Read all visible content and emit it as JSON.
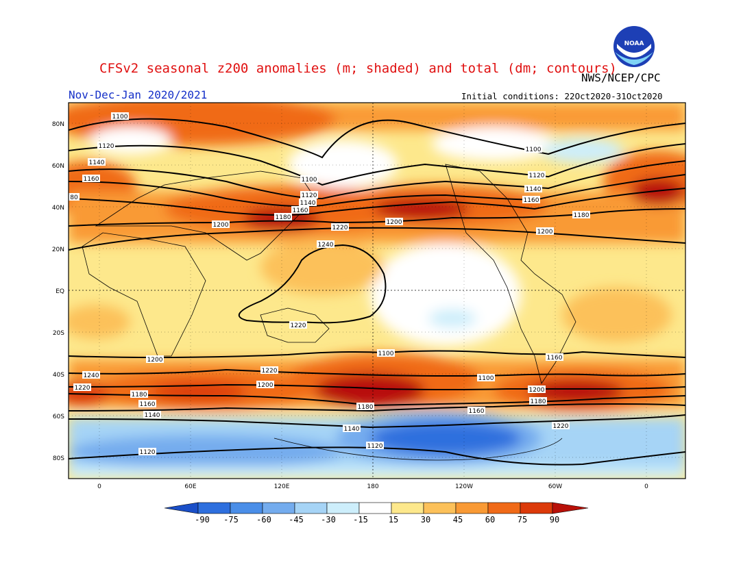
{
  "header": {
    "title": "CFSv2 seasonal z200 anomalies (m; shaded) and total (dm; contours)",
    "agency": "NWS/NCEP/CPC",
    "period": "Nov-Dec-Jan 2020/2021",
    "initial_conditions": "Initial conditions: 22Oct2020-31Oct2020",
    "logo_text": "NOAA"
  },
  "map": {
    "lat_labels": [
      "80N",
      "60N",
      "40N",
      "20N",
      "EQ",
      "20S",
      "40S",
      "60S",
      "80S"
    ],
    "lon_labels": [
      "0",
      "60E",
      "120E",
      "180",
      "120W",
      "60W",
      "0"
    ],
    "contour_labels": [
      "1100",
      "1120",
      "1140",
      "1160",
      "80",
      "1200",
      "1180",
      "1140",
      "1160",
      "1180",
      "1120",
      "1100",
      "1220",
      "1240",
      "1200",
      "1100",
      "1120",
      "1140",
      "1160",
      "1180",
      "1200",
      "1220",
      "1240",
      "1200",
      "1220",
      "1180",
      "1160",
      "1140",
      "1120",
      "1100",
      "1220",
      "1200",
      "1180",
      "1160",
      "1140",
      "1120",
      "1100",
      "1200",
      "1180",
      "1160",
      "1220"
    ]
  },
  "colorbar": {
    "labels": [
      "-90",
      "-75",
      "-60",
      "-45",
      "-30",
      "-15",
      "15",
      "30",
      "45",
      "60",
      "75",
      "90"
    ],
    "colors": [
      "#1a4fc8",
      "#2e6fde",
      "#4a8ee8",
      "#74acee",
      "#a6d4f6",
      "#cdeefb",
      "#ffffff",
      "#fde88c",
      "#fcc15a",
      "#f99a35",
      "#f06a18",
      "#dc3a0a",
      "#b81008"
    ],
    "units": "m"
  }
}
